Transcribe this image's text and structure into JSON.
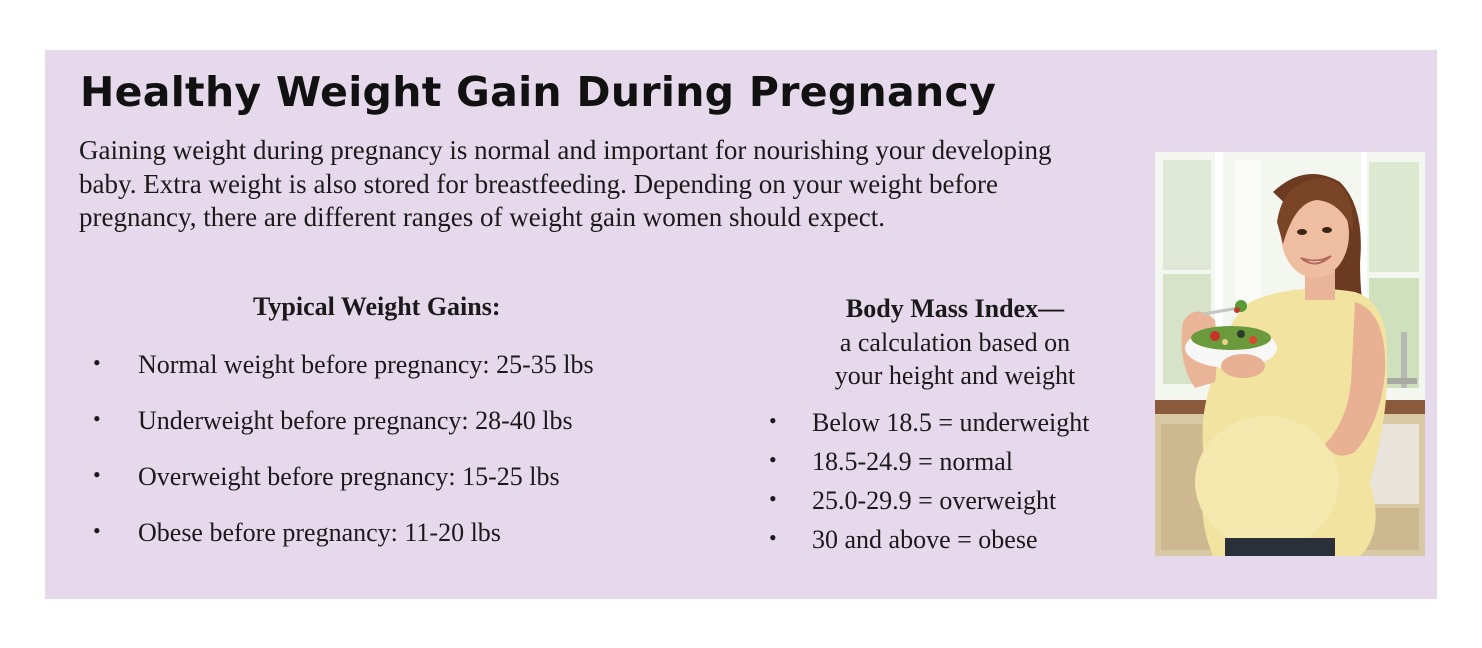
{
  "document": {
    "title": "Healthy Weight Gain During Pregnancy",
    "intro": "Gaining weight during pregnancy is normal and important for nourishing your developing baby.  Extra weight is also stored for breastfeeding.  Depending on your weight before pregnancy, there are different ranges of weight gain women should expect.",
    "typical_gains": {
      "heading": "Typical Weight Gains:",
      "items": [
        "Normal weight before pregnancy: 25-35 lbs",
        "Underweight before pregnancy: 28-40 lbs",
        "Overweight before pregnancy: 15-25 lbs",
        "Obese before pregnancy: 11-20 lbs"
      ]
    },
    "bmi": {
      "heading": "Body Mass Index—",
      "subheading_line1": "a calculation based on",
      "subheading_line2": "your height and weight",
      "items": [
        "Below 18.5 = underweight",
        "18.5-24.9 = normal",
        "25.0-29.9 = overweight",
        "30 and above = obese"
      ]
    },
    "bullet_glyph": "•"
  },
  "colors": {
    "panel_background": "#e6d9ec",
    "text": "#1a1a1a"
  }
}
